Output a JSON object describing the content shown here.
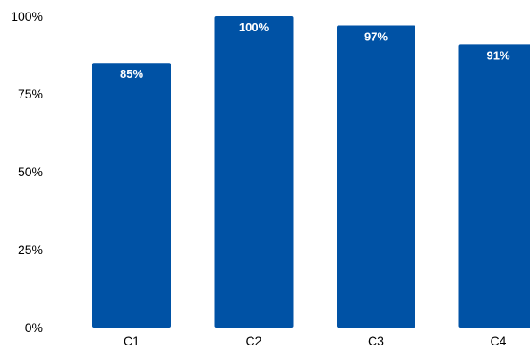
{
  "chart_data": {
    "type": "bar",
    "title": "",
    "xlabel": "",
    "ylabel": "",
    "categories": [
      "C1",
      "C2",
      "C3",
      "C4"
    ],
    "values": [
      85,
      100,
      97,
      91
    ],
    "data_labels": [
      "85%",
      "100%",
      "97%",
      "91%"
    ],
    "ylim": [
      0,
      100
    ],
    "yticks": [
      0,
      25,
      50,
      75,
      100
    ],
    "ytick_labels": [
      "0%",
      "25%",
      "50%",
      "75%",
      "100%"
    ],
    "grid": false,
    "legend": "none",
    "bar_color": "#0052A5",
    "label_color": "#FFFFFF"
  }
}
